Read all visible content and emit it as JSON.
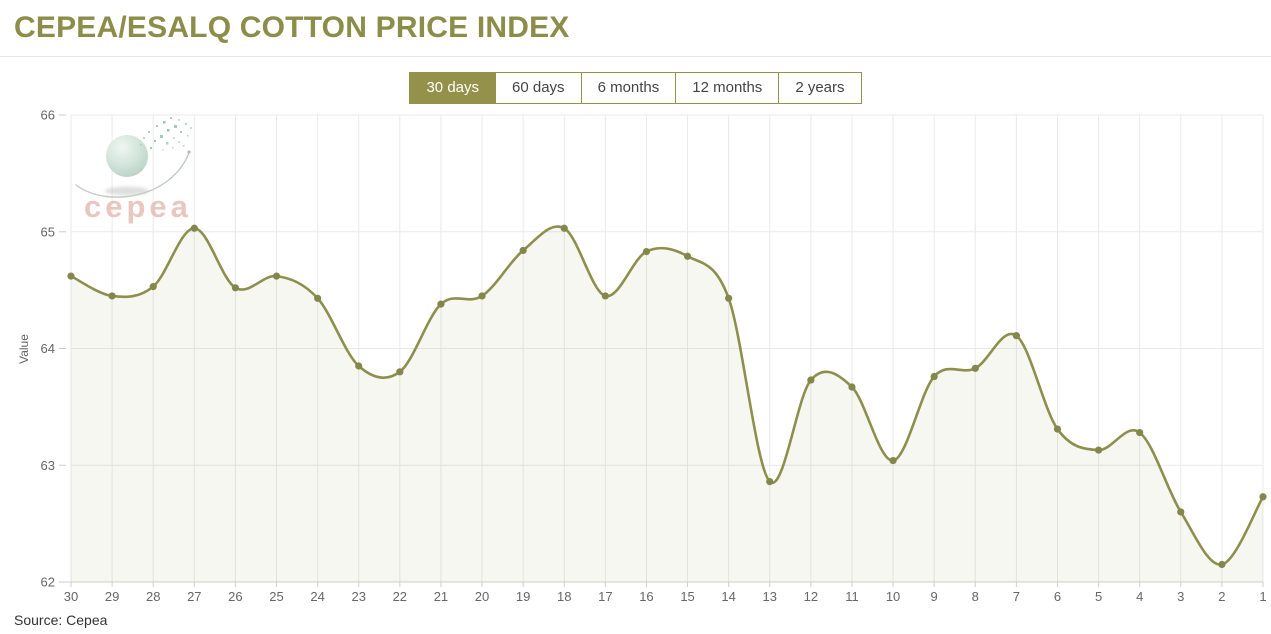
{
  "page": {
    "title": "CEPEA/ESALQ COTTON PRICE INDEX",
    "source": "Source: Cepea"
  },
  "logo": {
    "text": "cepea"
  },
  "range_buttons": [
    {
      "label": "30 days",
      "active": true
    },
    {
      "label": "60 days",
      "active": false
    },
    {
      "label": "6 months",
      "active": false
    },
    {
      "label": "12 months",
      "active": false
    },
    {
      "label": "2 years",
      "active": false
    }
  ],
  "colors": {
    "accent_olive": "#8d8f4c",
    "title_text": "#8b8d48",
    "active_button_bg": "#94914a",
    "button_border": "#94914a",
    "button_text": "#444444",
    "axis_label": "#666666",
    "grid_line": "#e9e9e9",
    "axis_line": "#cfcfcf",
    "logo_text_pink": "#e3bab0",
    "source_text": "#333333"
  },
  "chart_data": {
    "type": "area",
    "title": "CEPEA/ESALQ COTTON PRICE INDEX",
    "xlabel": "",
    "ylabel": "Value",
    "categories": [
      30,
      29,
      28,
      27,
      26,
      25,
      24,
      23,
      22,
      21,
      20,
      19,
      18,
      17,
      16,
      15,
      14,
      13,
      12,
      11,
      10,
      9,
      8,
      7,
      6,
      5,
      4,
      3,
      2,
      1
    ],
    "values": [
      64.62,
      64.45,
      64.53,
      65.03,
      64.52,
      64.62,
      64.43,
      63.85,
      63.8,
      64.38,
      64.45,
      64.84,
      65.03,
      64.45,
      64.83,
      64.79,
      64.43,
      62.86,
      63.73,
      63.67,
      63.04,
      63.76,
      63.83,
      64.11,
      63.31,
      63.13,
      63.28,
      62.6,
      62.15,
      62.73
    ],
    "ylim": [
      62,
      66
    ],
    "yticks": [
      66,
      65,
      64,
      63,
      62
    ],
    "grid": true,
    "legend": "none",
    "line_color": "#8d8f4c",
    "marker_color": "#84874b",
    "fill_color": "rgba(141,143,76,0.075)"
  }
}
